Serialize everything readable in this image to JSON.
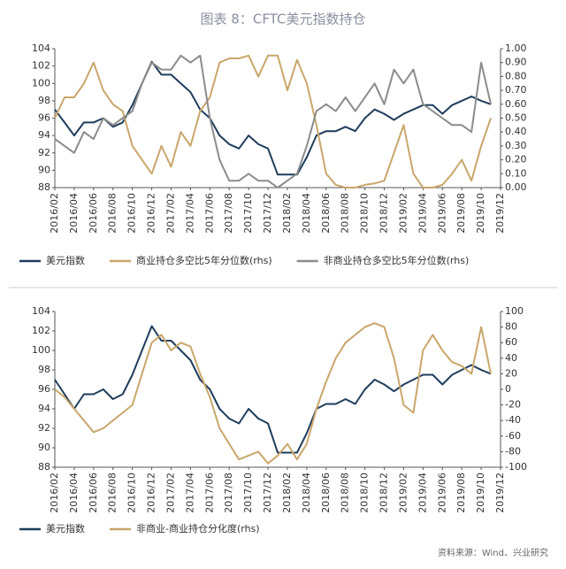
{
  "title": "图表 8：CFTC美元指数持仓",
  "source": "资料来源：Wind、兴业研究",
  "chart_data": [
    {
      "type": "line",
      "legend": "bottom",
      "categories": [
        "2016/02",
        null,
        "2016/04",
        null,
        "2016/06",
        null,
        "2016/08",
        null,
        "2016/10",
        null,
        "2016/12",
        null,
        "2017/02",
        null,
        "2017/04",
        null,
        "2017/06",
        null,
        "2017/08",
        null,
        "2017/10",
        null,
        "2017/12",
        null,
        "2018/02",
        null,
        "2018/04",
        null,
        "2018/06",
        null,
        "2018/08",
        null,
        "2018/10",
        null,
        "2018/12",
        null,
        "2019/02",
        null,
        "2019/04",
        null,
        "2019/06",
        null,
        "2019/08",
        null,
        "2019/10",
        null,
        "2019/12"
      ],
      "ylim": [
        88,
        104
      ],
      "yticks": [
        88,
        90,
        92,
        94,
        96,
        98,
        100,
        102,
        104
      ],
      "y2lim": [
        0,
        1
      ],
      "y2ticks": [
        {
          "value": 0,
          "label": "0.00"
        },
        {
          "value": 0.1,
          "label": "0.10"
        },
        {
          "value": 0.2,
          "label": "0.20"
        },
        {
          "value": 0.3,
          "label": "0.30"
        },
        {
          "value": 0.4,
          "label": "0.40"
        },
        {
          "value": 0.5,
          "label": "0.50"
        },
        {
          "value": 0.6,
          "label": "0.60"
        },
        {
          "value": 0.7,
          "label": "0.70"
        },
        {
          "value": 0.8,
          "label": "0.80"
        },
        {
          "value": 0.9,
          "label": "0.90"
        },
        {
          "value": 1,
          "label": "1.00"
        }
      ],
      "series": [
        {
          "name": "美元指数",
          "color": "#1f3d5c",
          "axis": "y",
          "values": [
            97,
            95.5,
            94,
            95.5,
            95.5,
            96,
            95,
            95.5,
            97.5,
            100,
            102.5,
            101,
            101,
            100,
            99,
            97,
            96,
            94,
            93,
            92.5,
            94,
            93,
            92.5,
            89.5,
            89.5,
            89.5,
            91.5,
            94,
            94.5,
            94.5,
            95,
            94.5,
            96,
            97,
            96.5,
            95.8,
            96.5,
            97,
            97.5,
            97.5,
            96.5,
            97.5,
            98,
            98.5,
            98,
            97.6,
            null
          ]
        },
        {
          "name": "商业持仓多空比5年分位数(rhs)",
          "color": "#c9a66b",
          "axis": "y2",
          "values": [
            0.5,
            0.65,
            0.65,
            0.75,
            0.9,
            0.7,
            0.6,
            0.55,
            0.3,
            0.2,
            0.1,
            0.3,
            0.15,
            0.4,
            0.3,
            0.55,
            0.65,
            0.9,
            0.93,
            0.93,
            0.95,
            0.8,
            0.95,
            0.95,
            0.7,
            0.92,
            0.75,
            0.45,
            0.1,
            0.02,
            0,
            0,
            0.02,
            0.03,
            0.05,
            0.25,
            0.45,
            0.1,
            0,
            0,
            0.02,
            0.1,
            0.2,
            0.05,
            0.3,
            0.5,
            null
          ]
        },
        {
          "name": "非商业持仓多空比5年分位数(rhs)",
          "color": "#8c8c8c",
          "axis": "y2",
          "values": [
            0.35,
            0.3,
            0.25,
            0.4,
            0.35,
            0.5,
            0.45,
            0.5,
            0.55,
            0.75,
            0.9,
            0.85,
            0.85,
            0.95,
            0.9,
            0.95,
            0.5,
            0.2,
            0.05,
            0.05,
            0.1,
            0.05,
            0.05,
            0,
            0.05,
            0.1,
            0.3,
            0.55,
            0.6,
            0.55,
            0.65,
            0.55,
            0.65,
            0.75,
            0.6,
            0.85,
            0.75,
            0.85,
            0.6,
            0.55,
            0.5,
            0.45,
            0.45,
            0.4,
            0.9,
            0.6,
            null
          ]
        }
      ]
    },
    {
      "type": "line",
      "legend": "bottom",
      "categories": [
        "2016/02",
        null,
        "2016/04",
        null,
        "2016/06",
        null,
        "2016/08",
        null,
        "2016/10",
        null,
        "2016/12",
        null,
        "2017/02",
        null,
        "2017/04",
        null,
        "2017/06",
        null,
        "2017/08",
        null,
        "2017/10",
        null,
        "2017/12",
        null,
        "2018/02",
        null,
        "2018/04",
        null,
        "2018/06",
        null,
        "2018/08",
        null,
        "2018/10",
        null,
        "2018/12",
        null,
        "2019/02",
        null,
        "2019/04",
        null,
        "2019/06",
        null,
        "2019/08",
        null,
        "2019/10",
        null,
        "2019/12"
      ],
      "ylim": [
        88,
        104
      ],
      "yticks": [
        88,
        90,
        92,
        94,
        96,
        98,
        100,
        102,
        104
      ],
      "y2lim": [
        -100,
        100
      ],
      "y2ticks": [
        -100,
        -80,
        -60,
        -40,
        -20,
        0,
        20,
        40,
        60,
        80,
        100
      ],
      "series": [
        {
          "name": "美元指数",
          "color": "#1f3d5c",
          "axis": "y",
          "values": [
            97,
            95.5,
            94,
            95.5,
            95.5,
            96,
            95,
            95.5,
            97.5,
            100,
            102.5,
            101,
            101,
            100,
            99,
            97,
            96,
            94,
            93,
            92.5,
            94,
            93,
            92.5,
            89.5,
            89.5,
            89.5,
            91.5,
            94,
            94.5,
            94.5,
            95,
            94.5,
            96,
            97,
            96.5,
            95.8,
            96.5,
            97,
            97.5,
            97.5,
            96.5,
            97.5,
            98,
            98.5,
            98,
            97.6,
            null
          ]
        },
        {
          "name": "非商业-商业持仓分化度(rhs)",
          "color": "#c9a66b",
          "axis": "y2",
          "values": [
            0,
            -10,
            -25,
            -40,
            -55,
            -50,
            -40,
            -30,
            -20,
            20,
            60,
            70,
            50,
            60,
            55,
            20,
            -10,
            -50,
            -70,
            -90,
            -85,
            -80,
            -95,
            -85,
            -70,
            -90,
            -70,
            -25,
            10,
            40,
            60,
            70,
            80,
            85,
            80,
            40,
            -20,
            -30,
            50,
            70,
            50,
            35,
            30,
            20,
            80,
            20,
            null
          ]
        }
      ]
    }
  ]
}
